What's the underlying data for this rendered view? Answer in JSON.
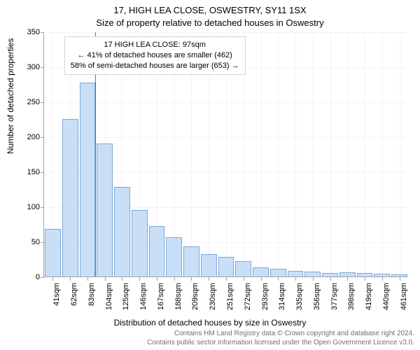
{
  "titles": {
    "line1": "17, HIGH LEA CLOSE, OSWESTRY, SY11 1SX",
    "line2": "Size of property relative to detached houses in Oswestry"
  },
  "chart": {
    "type": "histogram",
    "ylabel": "Number of detached properties",
    "xlabel": "Distribution of detached houses by size in Oswestry",
    "ylim": [
      0,
      350
    ],
    "ytick_step": 50,
    "bar_color": "#c9dff7",
    "bar_border": "#7da7d9",
    "grid_color": "#f2f3f5",
    "axis_color": "#9aa4af",
    "background_color": "#ffffff",
    "refline_color": "#e03c3c",
    "refline_x_index": 3,
    "xticks": [
      "41sqm",
      "62sqm",
      "83sqm",
      "104sqm",
      "125sqm",
      "146sqm",
      "167sqm",
      "188sqm",
      "209sqm",
      "230sqm",
      "251sqm",
      "272sqm",
      "293sqm",
      "314sqm",
      "335sqm",
      "356sqm",
      "377sqm",
      "398sqm",
      "419sqm",
      "440sqm",
      "461sqm"
    ],
    "values": [
      68,
      225,
      277,
      190,
      128,
      95,
      72,
      56,
      43,
      32,
      28,
      22,
      13,
      11,
      8,
      7,
      5,
      6,
      5,
      4,
      3
    ],
    "bar_width_ratio": 0.92,
    "label_fontsize": 12,
    "tick_fontsize": 11,
    "title_fontsize": 13
  },
  "annotation": {
    "line1": "17 HIGH LEA CLOSE: 97sqm",
    "line2": "← 41% of detached houses are smaller (462)",
    "line3": "58% of semi-detached houses are larger (653) →",
    "box_background": "#ffffff",
    "box_border": "#d0d4d8"
  },
  "footer": {
    "line1": "Contains HM Land Registry data © Crown copyright and database right 2024.",
    "line2": "Contains public sector information licensed under the Open Government Licence v3.0.",
    "color": "#707070"
  }
}
